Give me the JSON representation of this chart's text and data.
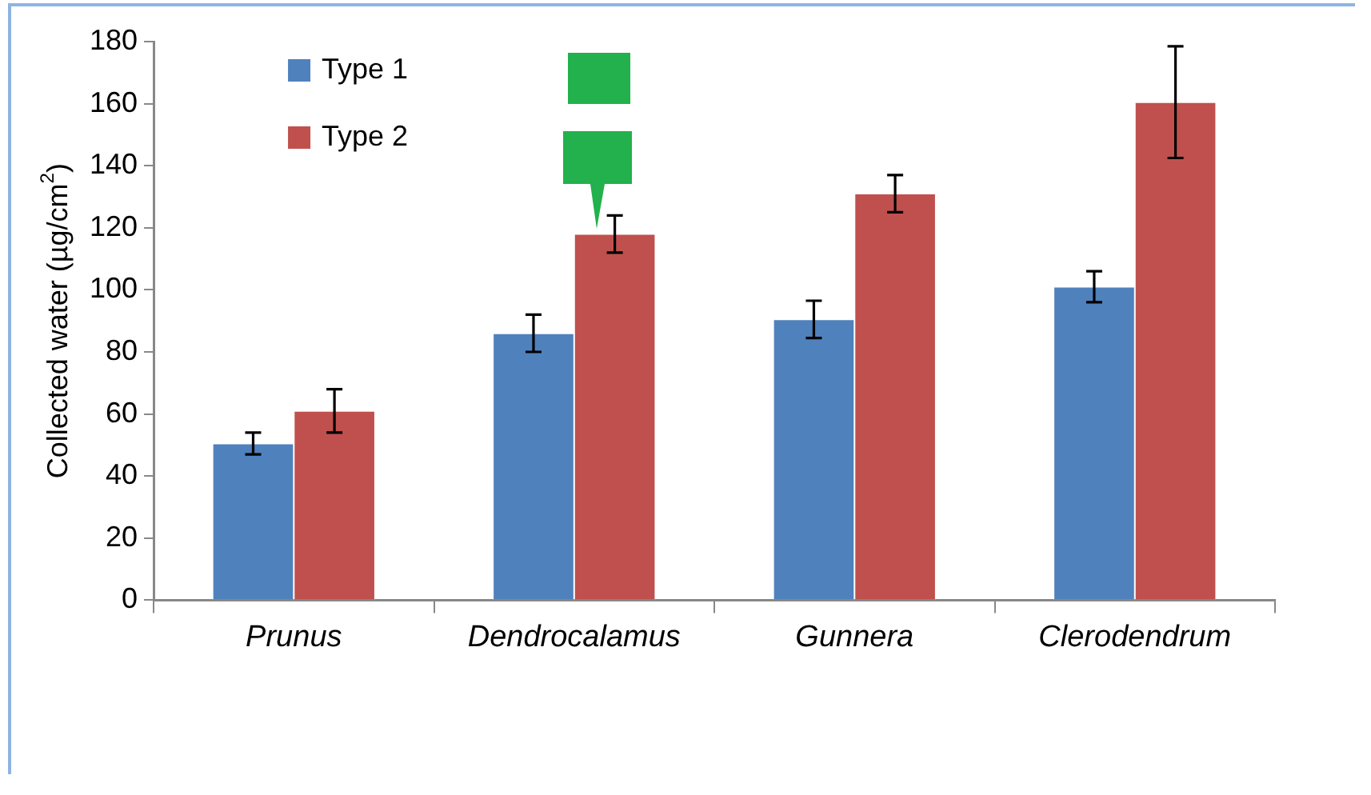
{
  "chart_data": {
    "type": "bar",
    "ylabel": "Collected water (µg/cm$^{2}$)",
    "categories": [
      "Prunus",
      "Dendrocalamus",
      "Gunnera",
      "Clerodendrum"
    ],
    "series": [
      {
        "name": "Type 1",
        "color": "#4f81bd",
        "values": [
          50.5,
          86,
          90.5,
          101
        ],
        "errors": [
          3.5,
          6,
          6,
          5
        ]
      },
      {
        "name": "Type 2",
        "color": "#c0504d",
        "values": [
          61,
          118,
          131,
          160.5
        ],
        "errors": [
          7,
          6,
          6,
          18
        ]
      }
    ],
    "ylim": [
      0,
      180
    ],
    "yticks": [
      0,
      20,
      40,
      60,
      80,
      100,
      120,
      140,
      160,
      180
    ],
    "grid": false,
    "legend": "top left"
  }
}
